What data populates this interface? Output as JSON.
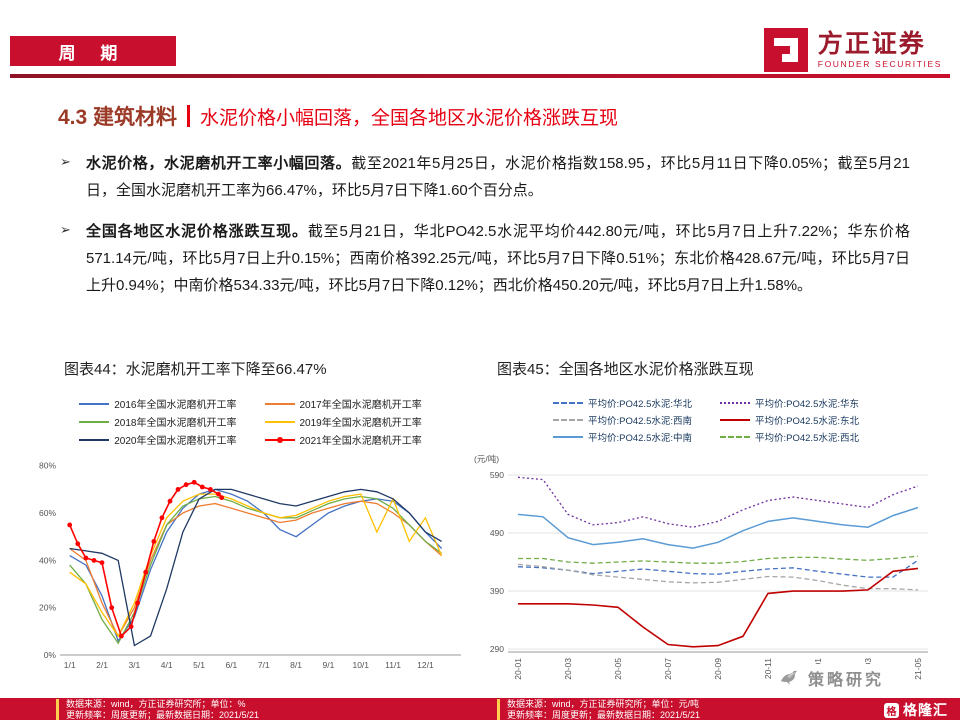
{
  "header": {
    "tag": "周 期",
    "logo_cn": "方正证券",
    "logo_en": "FOUNDER SECURITIES"
  },
  "section": {
    "number_title": "4.3 建筑材料",
    "subtitle": "水泥价格小幅回落，全国各地区水泥价格涨跌互现"
  },
  "bullets": [
    {
      "marker": "➢",
      "bold": "水泥价格，水泥磨机开工率小幅回落。",
      "text": "截至2021年5月25日，水泥价格指数158.95，环比5月11日下降0.05%；截至5月21日，全国水泥磨机开工率为66.47%，环比5月7日下降1.60个百分点。"
    },
    {
      "marker": "➢",
      "bold": "全国各地区水泥价格涨跌互现。",
      "text": "截至5月21日，华北PO42.5水泥平均价442.80元/吨，环比5月7日上升7.22%；华东价格571.14元/吨，环比5月7日上升0.15%；西南价格392.25元/吨，环比5月7日下降0.51%；东北价格428.67元/吨，环比5月7日上升0.94%；中南价格534.33元/吨，环比5月7日下降0.12%；西北价格450.20元/吨，环比5月7日上升1.58%。"
    }
  ],
  "figures": [
    {
      "title": "图表44：水泥磨机开工率下降至66.47%"
    },
    {
      "title": "图表45：全国各地区水泥价格涨跌互现"
    }
  ],
  "chart_data": [
    {
      "type": "line",
      "title": "水泥磨机开工率下降至66.47%",
      "xlim": [
        0.7,
        13.1
      ],
      "ylim": [
        0,
        82
      ],
      "grid": false,
      "x": [
        1,
        1.5,
        2,
        2.5,
        3,
        3.5,
        4,
        4.5,
        5,
        5.5,
        6,
        6.5,
        7,
        7.5,
        8,
        8.5,
        9,
        9.5,
        10,
        10.5,
        11,
        11.5,
        12,
        12.5
      ],
      "xticks": [
        {
          "v": 1,
          "label": "1/1"
        },
        {
          "v": 2,
          "label": "2/1"
        },
        {
          "v": 3,
          "label": "3/1"
        },
        {
          "v": 4,
          "label": "4/1"
        },
        {
          "v": 5,
          "label": "5/1"
        },
        {
          "v": 6,
          "label": "6/1"
        },
        {
          "v": 7,
          "label": "7/1"
        },
        {
          "v": 8,
          "label": "8/1"
        },
        {
          "v": 9,
          "label": "9/1"
        },
        {
          "v": 10,
          "label": "10/1"
        },
        {
          "v": 11,
          "label": "11/1"
        },
        {
          "v": 12,
          "label": "12/1"
        }
      ],
      "yticks": [
        {
          "v": 0,
          "label": "0%"
        },
        {
          "v": 20,
          "label": "20%"
        },
        {
          "v": 40,
          "label": "40%"
        },
        {
          "v": 60,
          "label": "60%"
        },
        {
          "v": 80,
          "label": "80%"
        }
      ],
      "xtick_rotate": false,
      "series": [
        {
          "key": "2016",
          "name": "2016年全国水泥磨机开工率",
          "color": "#4472C4",
          "dash": "solid",
          "y": [
            42,
            38,
            25,
            6,
            16,
            36,
            52,
            62,
            68,
            70,
            68,
            65,
            60,
            53,
            50,
            55,
            60,
            63,
            65,
            66,
            65,
            60,
            52,
            45
          ]
        },
        {
          "key": "2017",
          "name": "2017年全国水泥磨机开工率",
          "color": "#ED7D31",
          "dash": "solid",
          "y": [
            45,
            40,
            22,
            8,
            20,
            40,
            55,
            60,
            63,
            64,
            62,
            60,
            58,
            56,
            57,
            60,
            62,
            64,
            65,
            64,
            60,
            55,
            48,
            42
          ]
        },
        {
          "key": "2018",
          "name": "2018年全国水泥磨机开工率",
          "color": "#70AD47",
          "dash": "solid",
          "y": [
            38,
            30,
            15,
            5,
            18,
            38,
            55,
            63,
            66,
            67,
            65,
            62,
            60,
            58,
            58,
            61,
            64,
            66,
            67,
            66,
            62,
            55,
            48,
            43
          ]
        },
        {
          "key": "2019",
          "name": "2019年全国水泥磨机开工率",
          "color": "#FFC000",
          "dash": "solid",
          "y": [
            35,
            30,
            18,
            8,
            22,
            42,
            58,
            65,
            68,
            68,
            66,
            63,
            60,
            58,
            59,
            62,
            65,
            67,
            68,
            52,
            66,
            48,
            58,
            42
          ]
        },
        {
          "key": "2020",
          "name": "2020年全国水泥磨机开工率",
          "color": "#1F3864",
          "dash": "solid",
          "y": [
            45,
            44,
            43,
            40,
            4,
            8,
            28,
            52,
            66,
            70,
            70,
            68,
            66,
            64,
            63,
            65,
            67,
            69,
            70,
            69,
            66,
            60,
            52,
            48
          ]
        },
        {
          "key": "2021",
          "name": "2021年全国水泥磨机开工率",
          "color": "#FF0000",
          "dash": "solid",
          "marker": true,
          "width": 1.6,
          "x": [
            1,
            1.25,
            1.5,
            1.75,
            2,
            2.3,
            2.6,
            2.9,
            3.1,
            3.35,
            3.6,
            3.85,
            4.1,
            4.35,
            4.6,
            4.85,
            5.1,
            5.35,
            5.6,
            5.7
          ],
          "y": [
            55,
            47,
            41,
            40,
            39,
            20,
            8,
            12,
            22,
            35,
            48,
            58,
            65,
            70,
            72,
            73,
            71,
            70,
            68,
            66.5
          ]
        }
      ]
    },
    {
      "type": "line",
      "title": "全国各地区水泥价格涨跌互现",
      "y_title": "(元/吨)",
      "xlim": [
        -0.4,
        16.4
      ],
      "ylim": [
        285,
        602
      ],
      "grid": true,
      "x": [
        0,
        1,
        2,
        3,
        4,
        5,
        6,
        7,
        8,
        9,
        10,
        11,
        12,
        13,
        14,
        15,
        16
      ],
      "xticks": [
        {
          "v": 0,
          "label": "20-01"
        },
        {
          "v": 2,
          "label": "20-03"
        },
        {
          "v": 4,
          "label": "20-05"
        },
        {
          "v": 6,
          "label": "20-07"
        },
        {
          "v": 8,
          "label": "20-09"
        },
        {
          "v": 10,
          "label": "20-11"
        },
        {
          "v": 12,
          "label": "21-01"
        },
        {
          "v": 14,
          "label": "21-03"
        },
        {
          "v": 16,
          "label": "21-05"
        }
      ],
      "yticks": [
        {
          "v": 290,
          "label": "290"
        },
        {
          "v": 390,
          "label": "390"
        },
        {
          "v": 490,
          "label": "490"
        },
        {
          "v": 590,
          "label": "590"
        }
      ],
      "xtick_rotate": true,
      "series": [
        {
          "key": "huabei",
          "name": "平均价:PO42.5水泥:华北",
          "color": "#4472C4",
          "dash": "dashed",
          "y": [
            432,
            430,
            426,
            420,
            424,
            428,
            424,
            420,
            419,
            424,
            428,
            430,
            424,
            419,
            414,
            414,
            443
          ]
        },
        {
          "key": "huadong",
          "name": "平均价:PO42.5水泥:华东",
          "color": "#7030A0",
          "dash": "dotted",
          "y": [
            586,
            582,
            522,
            504,
            508,
            518,
            506,
            500,
            510,
            530,
            546,
            552,
            546,
            540,
            534,
            556,
            571
          ]
        },
        {
          "key": "xinan",
          "name": "平均价:PO42.5水泥:西南",
          "color": "#A6A6A6",
          "dash": "dashed",
          "y": [
            436,
            432,
            426,
            418,
            414,
            410,
            406,
            404,
            405,
            410,
            415,
            414,
            408,
            400,
            394,
            394,
            392
          ]
        },
        {
          "key": "dongbei",
          "name": "平均价:PO42.5水泥:东北",
          "color": "#C00000",
          "dash": "solid",
          "width": 1.6,
          "y": [
            368,
            368,
            368,
            366,
            362,
            328,
            298,
            294,
            296,
            312,
            386,
            390,
            390,
            390,
            392,
            424,
            429
          ]
        },
        {
          "key": "zhongnan",
          "name": "平均价:PO42.5水泥:中南",
          "color": "#5B9BD5",
          "dash": "solid",
          "width": 1.5,
          "y": [
            522,
            518,
            482,
            470,
            474,
            480,
            470,
            464,
            474,
            494,
            510,
            516,
            510,
            504,
            500,
            520,
            534
          ]
        },
        {
          "key": "xibei",
          "name": "平均价:PO42.5水泥:西北",
          "color": "#70AD47",
          "dash": "dashed",
          "y": [
            446,
            446,
            440,
            438,
            440,
            442,
            440,
            438,
            438,
            441,
            446,
            448,
            448,
            445,
            443,
            446,
            450
          ]
        }
      ]
    }
  ],
  "footers": [
    {
      "line1": "数据来源：wind，方正证券研究所；单位：%",
      "line2": "更新频率：周度更新；最新数据日期：2021/5/21"
    },
    {
      "line1": "数据来源：wind，方正证券研究所；单位：元/吨",
      "line2": "更新频率：周度更新；最新数据日期：2021/5/21"
    }
  ],
  "watermark": {
    "text": "策略研究"
  },
  "brand_footer": {
    "icon_char": "格",
    "text": "格隆汇"
  }
}
